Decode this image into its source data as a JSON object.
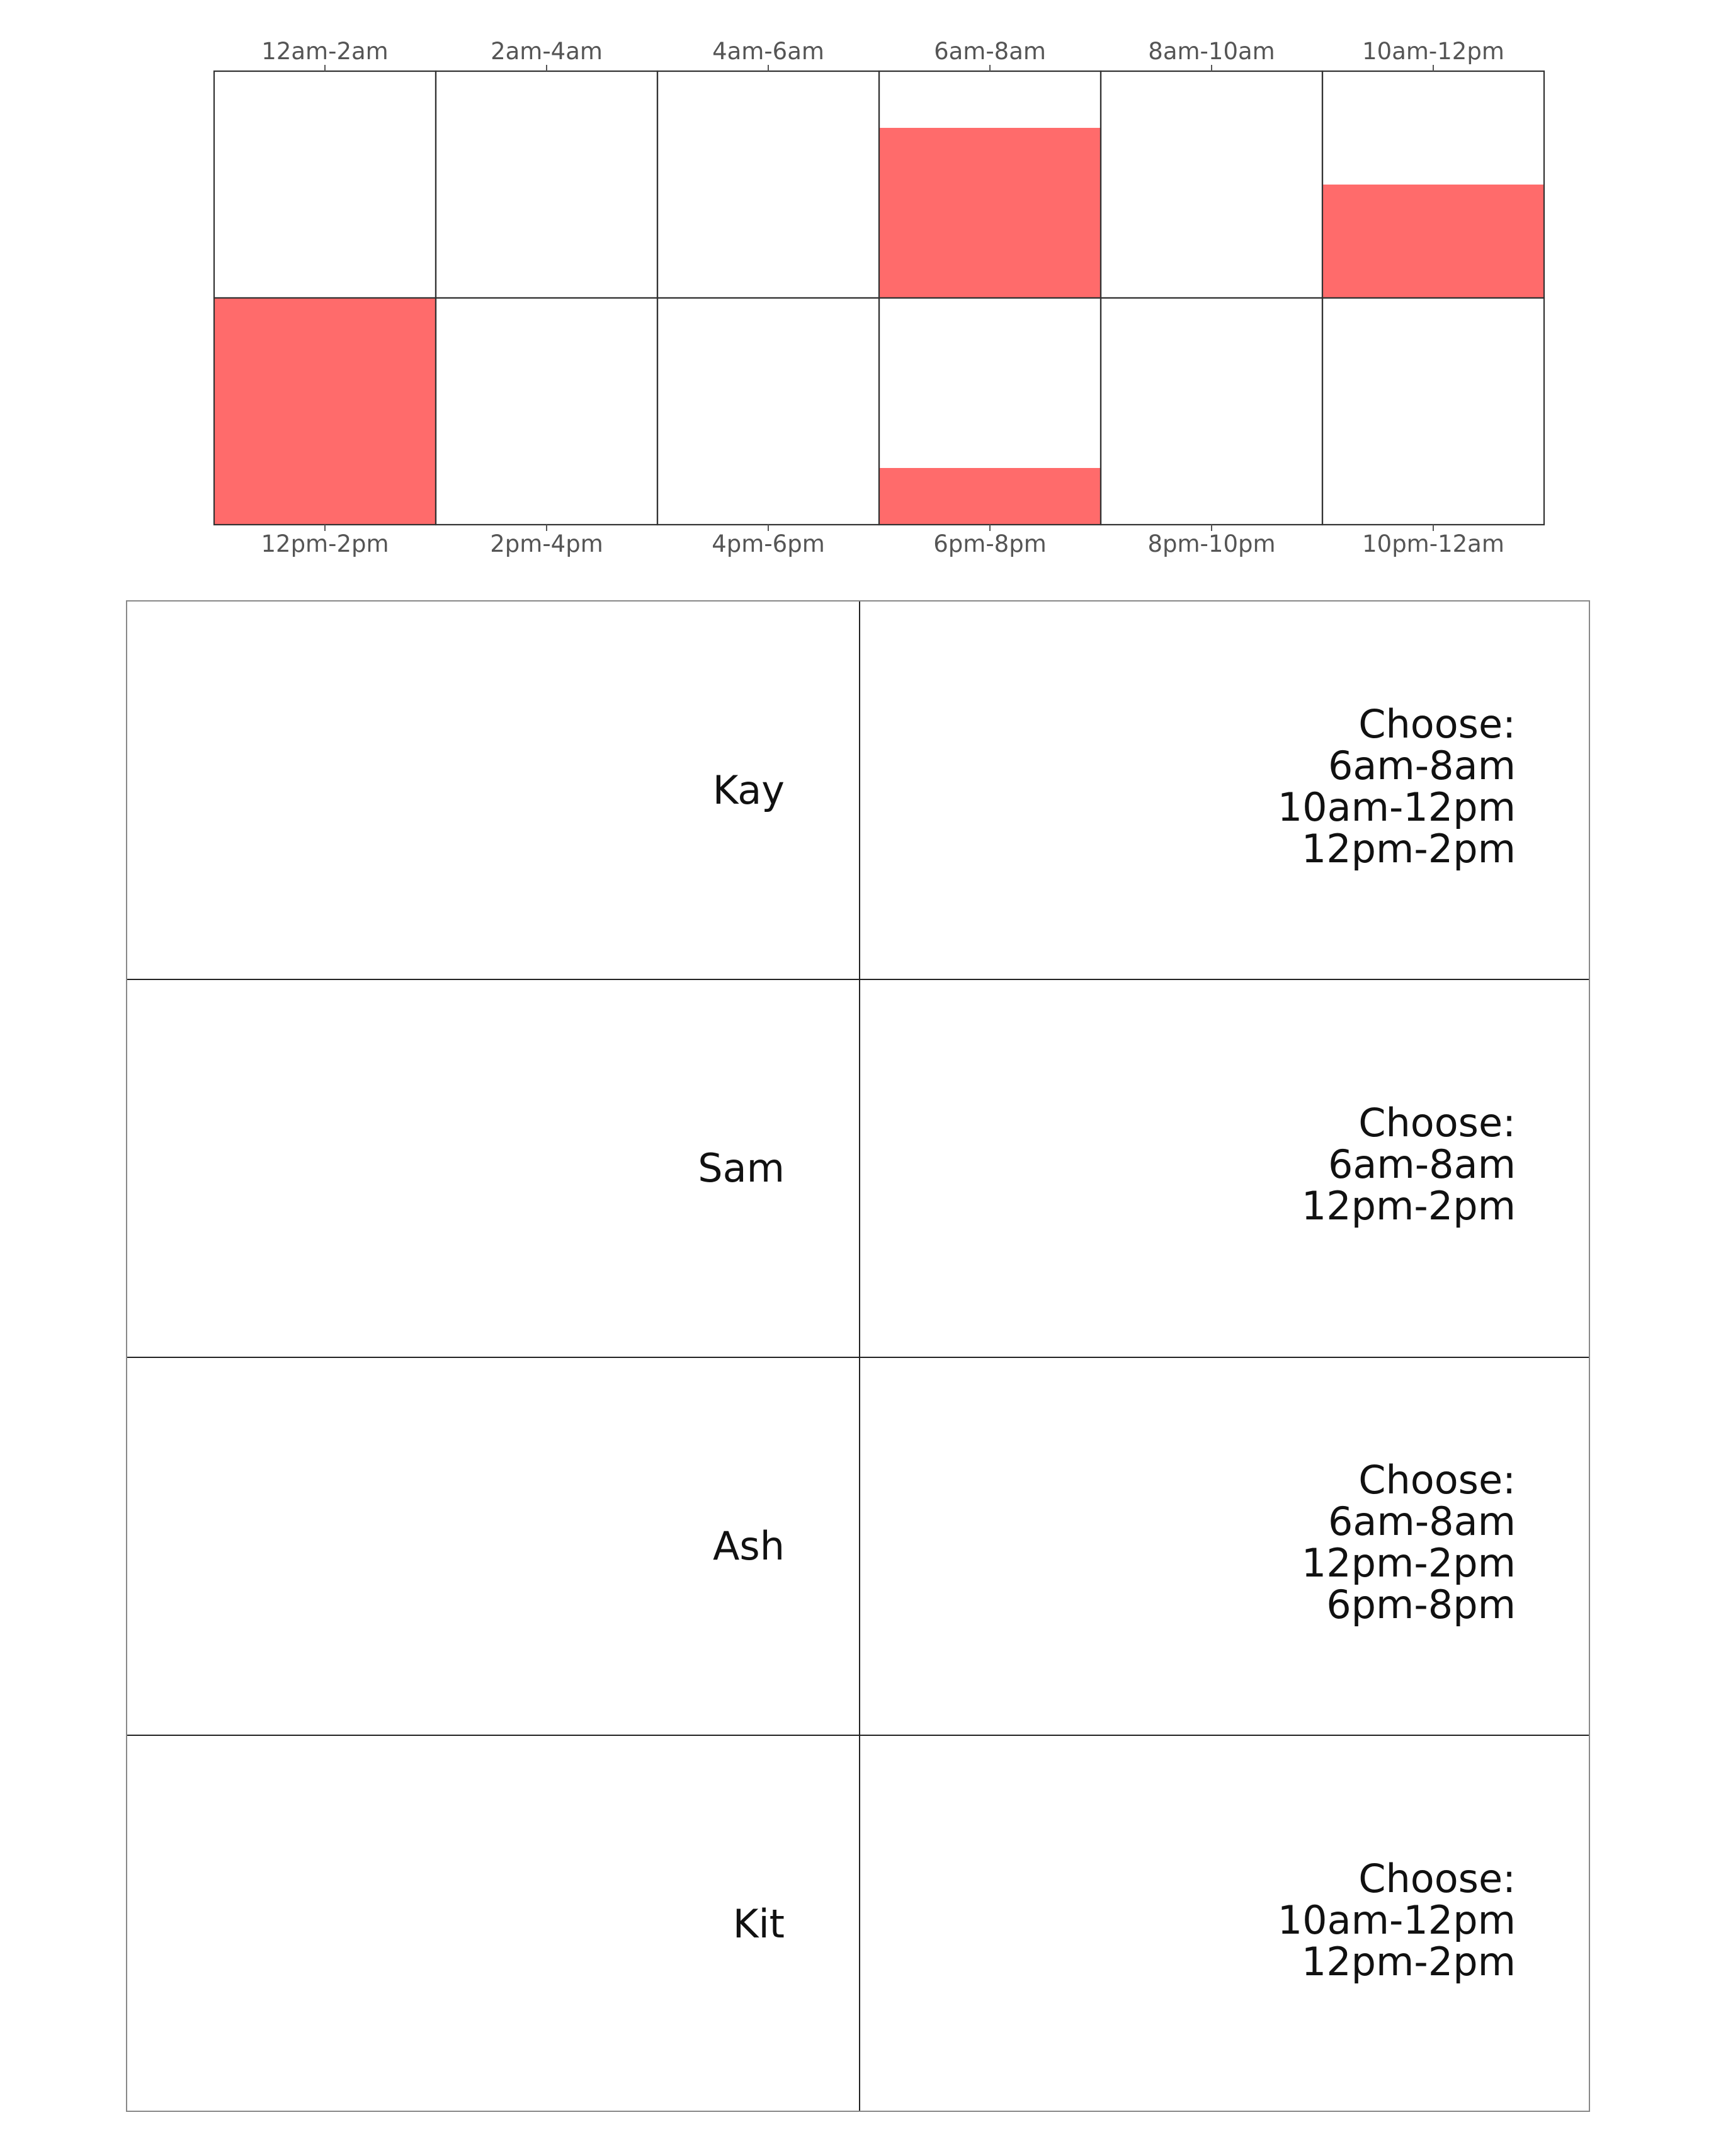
{
  "chart_data": {
    "type": "heatmap",
    "title": "",
    "top_row_labels": [
      "12am-2am",
      "2am-4am",
      "4am-6am",
      "6am-8am",
      "8am-10am",
      "10am-12pm"
    ],
    "bottom_row_labels": [
      "12pm-2pm",
      "2pm-4pm",
      "4pm-6pm",
      "6pm-8pm",
      "8pm-10pm",
      "10pm-12am"
    ],
    "rows": [
      {
        "values": [
          0,
          0,
          0,
          0.75,
          0,
          0.5
        ]
      },
      {
        "values": [
          1,
          0,
          0,
          0.25,
          0,
          0
        ]
      }
    ],
    "fill_color": "#ff6b6b",
    "grid": true
  },
  "table": {
    "rows": [
      {
        "name": "Kay",
        "choices": [
          "Choose:",
          "6am-8am",
          "10am-12pm",
          "12pm-2pm"
        ]
      },
      {
        "name": "Sam",
        "choices": [
          "Choose:",
          "6am-8am",
          "12pm-2pm"
        ]
      },
      {
        "name": "Ash",
        "choices": [
          "Choose:",
          "6am-8am",
          "12pm-2pm",
          "6pm-8pm"
        ]
      },
      {
        "name": "Kit",
        "choices": [
          "Choose:",
          "10am-12pm",
          "12pm-2pm"
        ]
      }
    ]
  }
}
